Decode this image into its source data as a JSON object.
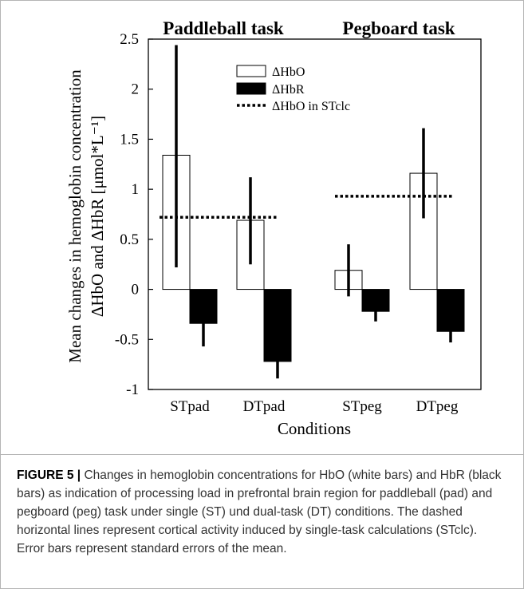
{
  "figure": {
    "caption_label": "FIGURE 5 |",
    "caption_text": "Changes in hemoglobin concentrations for HbO (white bars) and HbR (black bars) as indication of processing load in prefrontal brain region for paddleball (pad) and pegboard (peg) task under single (ST) und dual-task (DT) conditions. The dashed horizontal lines represent cortical activity induced by single-task calculations (STclc). Error bars represent standard errors of the mean."
  },
  "chart_data": {
    "type": "bar",
    "panel_titles": [
      "Paddleball task",
      "Pegboard task"
    ],
    "categories": [
      "STpad",
      "DTpad",
      "STpeg",
      "DTpeg"
    ],
    "xlabel": "Conditions",
    "ylabel_line1": "Mean changes in hemoglobin concentration",
    "ylabel_line2": "ΔHbO and ΔHbR [μmol*L⁻¹]",
    "ylim": [
      -1,
      2.5
    ],
    "yticks": [
      "2.5",
      "2",
      "1.5",
      "1",
      "0.5",
      "0",
      "-0.5",
      "-1"
    ],
    "series": [
      {
        "name": "ΔHbO",
        "color": "#ffffff",
        "values": [
          1.34,
          0.69,
          0.19,
          1.16
        ],
        "error_low": [
          0.22,
          0.25,
          -0.07,
          0.71
        ],
        "error_high": [
          2.44,
          1.12,
          0.45,
          1.61
        ]
      },
      {
        "name": "ΔHbR",
        "color": "#000000",
        "values": [
          -0.34,
          -0.72,
          -0.22,
          -0.42
        ],
        "error_low": [
          -0.57,
          -0.89,
          -0.32,
          -0.53
        ],
        "error_high": [
          -0.34,
          -0.72,
          -0.22,
          -0.42
        ]
      }
    ],
    "reference_lines": {
      "name": "ΔHbO in STclc",
      "style": "dotted",
      "values": [
        0.72,
        0.93
      ]
    },
    "legend_position": "top-center",
    "grid": false
  }
}
